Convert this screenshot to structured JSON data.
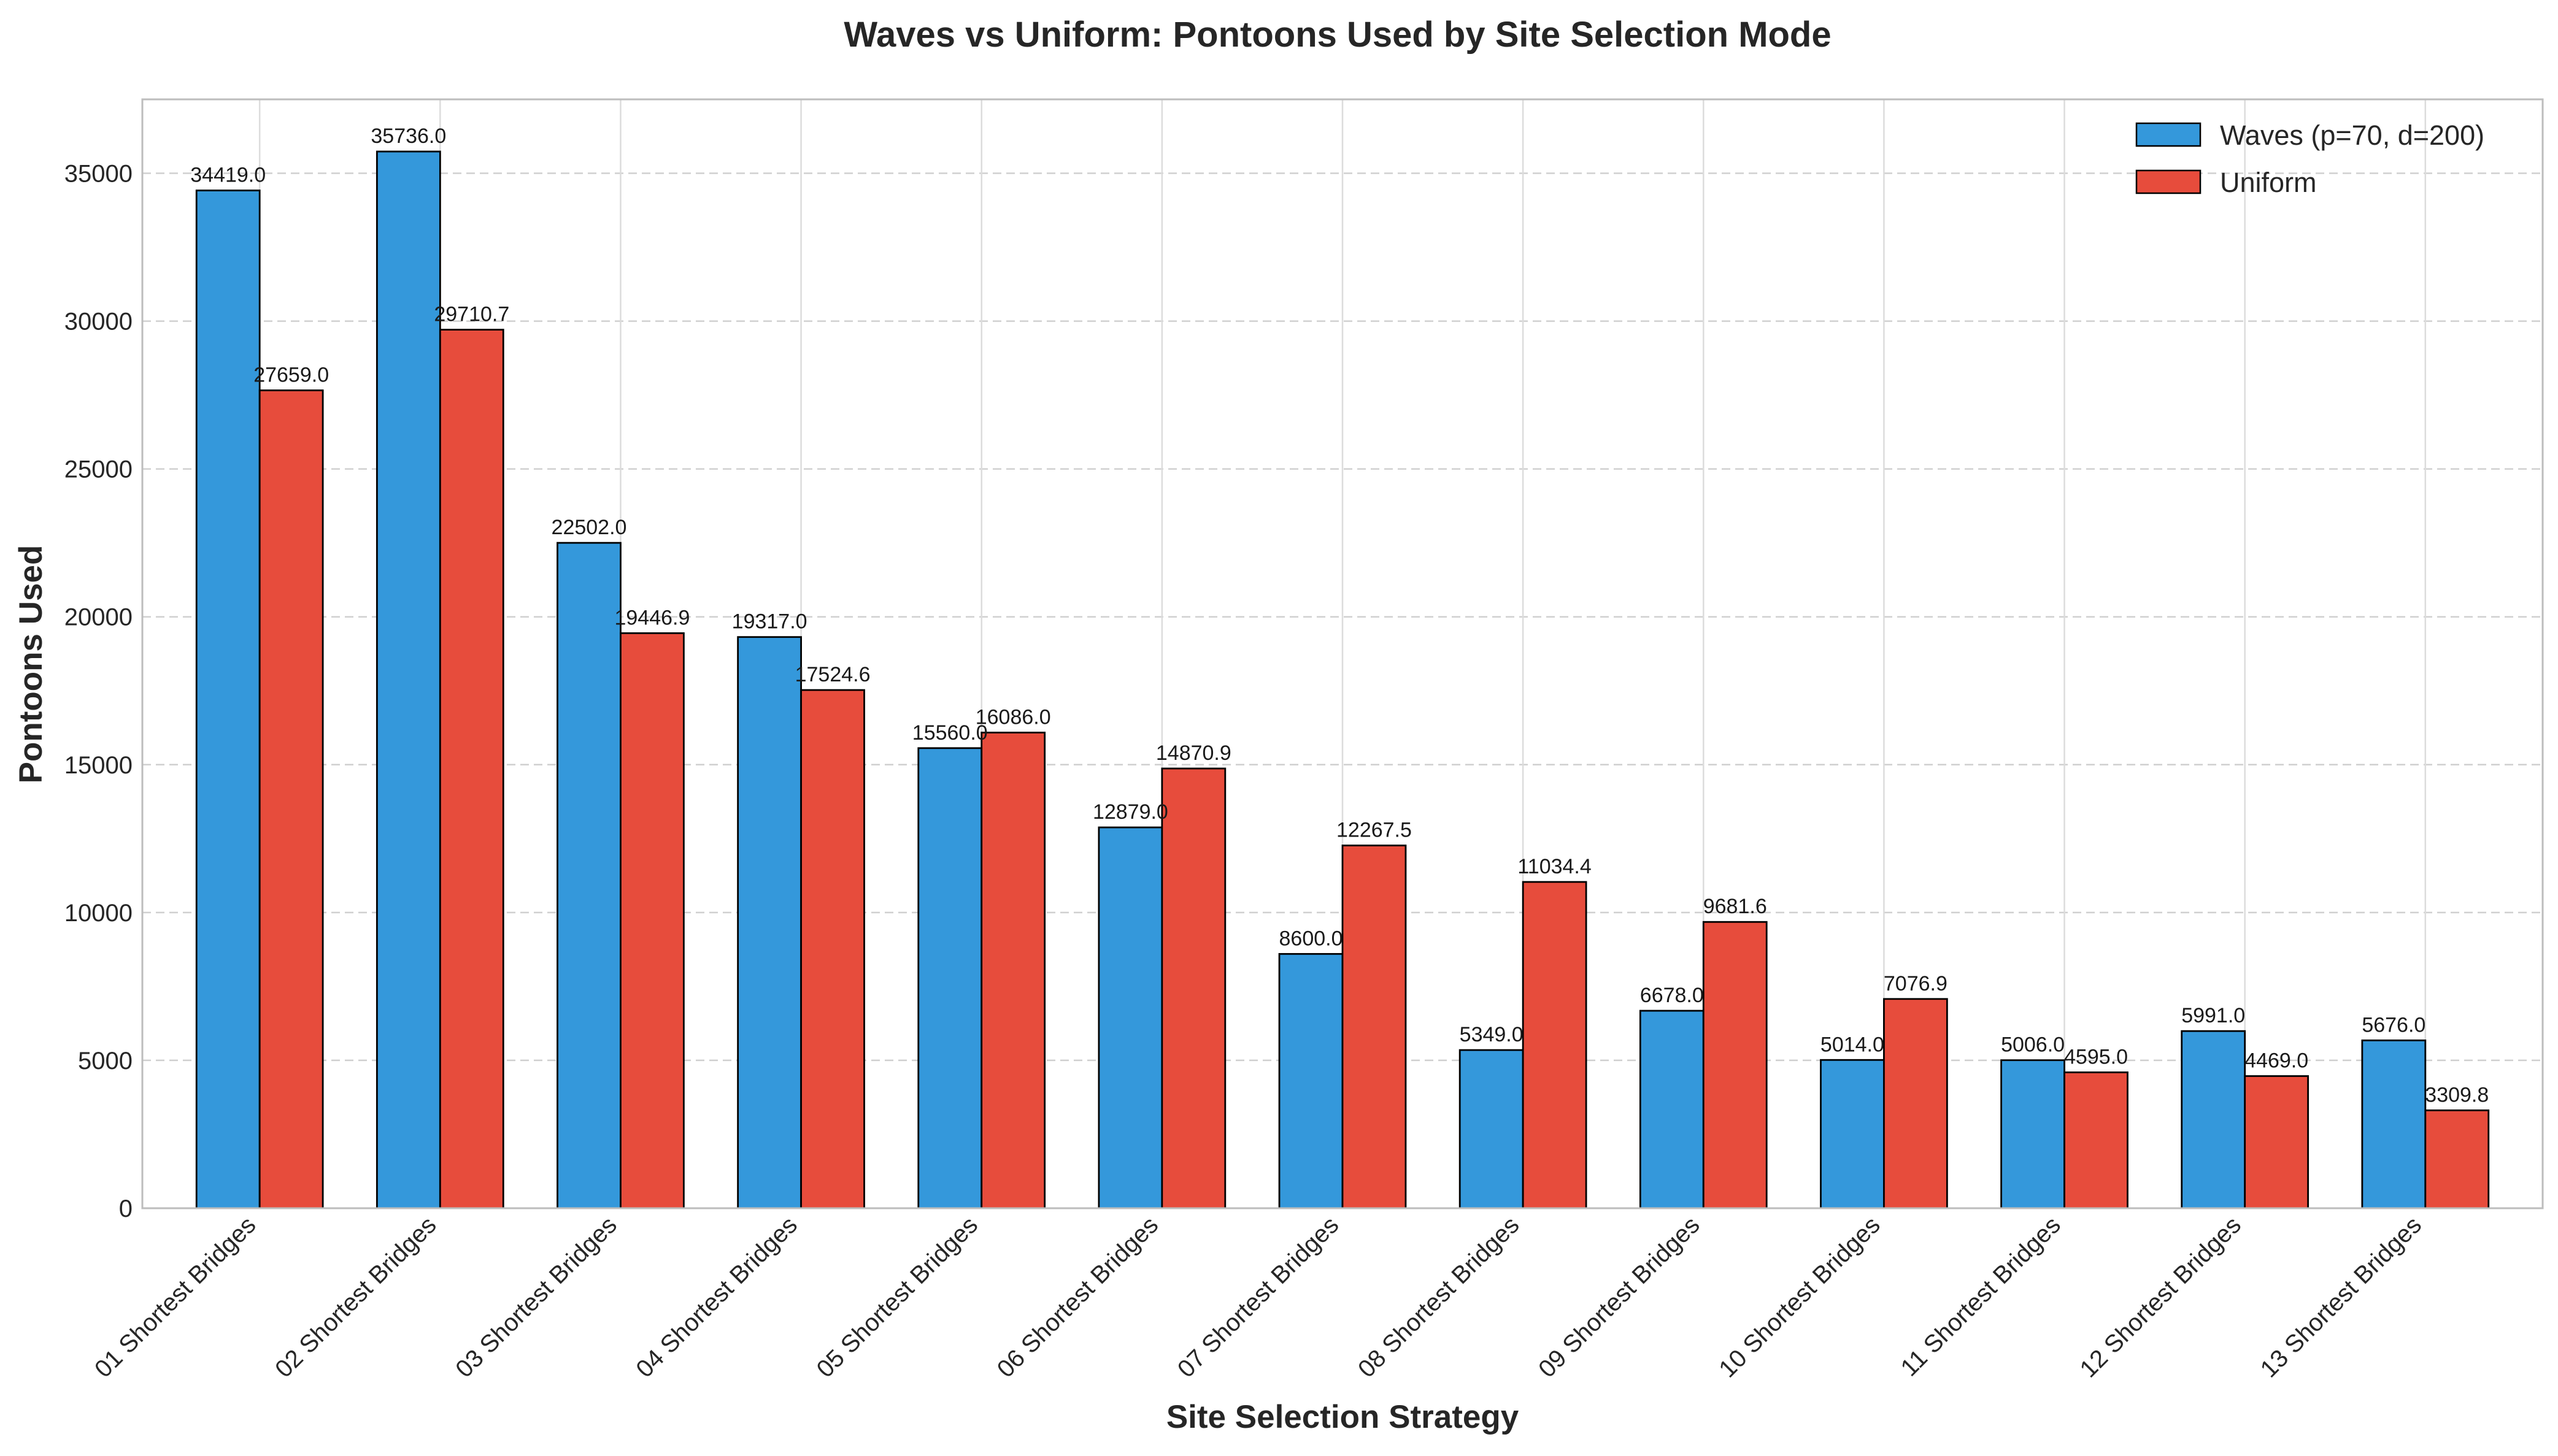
{
  "chart_data": {
    "type": "bar",
    "title": "Waves vs Uniform: Pontoons Used by Site Selection Mode",
    "xlabel": "Site Selection Strategy",
    "ylabel": "Pontoons Used",
    "categories": [
      "01 Shortest Bridges",
      "02 Shortest Bridges",
      "03 Shortest Bridges",
      "04 Shortest Bridges",
      "05 Shortest Bridges",
      "06 Shortest Bridges",
      "07 Shortest Bridges",
      "08 Shortest Bridges",
      "09 Shortest Bridges",
      "10 Shortest Bridges",
      "11 Shortest Bridges",
      "12 Shortest Bridges",
      "13 Shortest Bridges"
    ],
    "series": [
      {
        "name": "Waves (p=70, d=200)",
        "color": "#3498db",
        "values": [
          34419.0,
          35736.0,
          22502.0,
          19317.0,
          15560.0,
          12879.0,
          8600.0,
          5349.0,
          6678.0,
          5014.0,
          5006.0,
          5991.0,
          5676.0
        ],
        "labels": [
          "34419.0",
          "35736.0",
          "22502.0",
          "19317.0",
          "15560.0",
          "12879.0",
          "8600.0",
          "5349.0",
          "6678.0",
          "5014.0",
          "5006.0",
          "5991.0",
          "5676.0"
        ]
      },
      {
        "name": "Uniform",
        "color": "#e74c3c",
        "values": [
          27659.0,
          29710.7,
          19446.9,
          17524.6,
          16086.0,
          14870.9,
          12267.5,
          11034.4,
          9681.6,
          7076.9,
          4595.0,
          4469.0,
          3309.8
        ],
        "labels": [
          "27659.0",
          "29710.7",
          "19446.9",
          "17524.6",
          "16086.0",
          "14870.9",
          "12267.5",
          "11034.4",
          "9681.6",
          "7076.9",
          "4595.0",
          "4469.0",
          "3309.8"
        ]
      }
    ],
    "yticks": [
      0,
      5000,
      10000,
      15000,
      20000,
      25000,
      30000,
      35000
    ],
    "ylim": [
      0,
      37500
    ],
    "grid": true,
    "legend_position": "top-right"
  }
}
